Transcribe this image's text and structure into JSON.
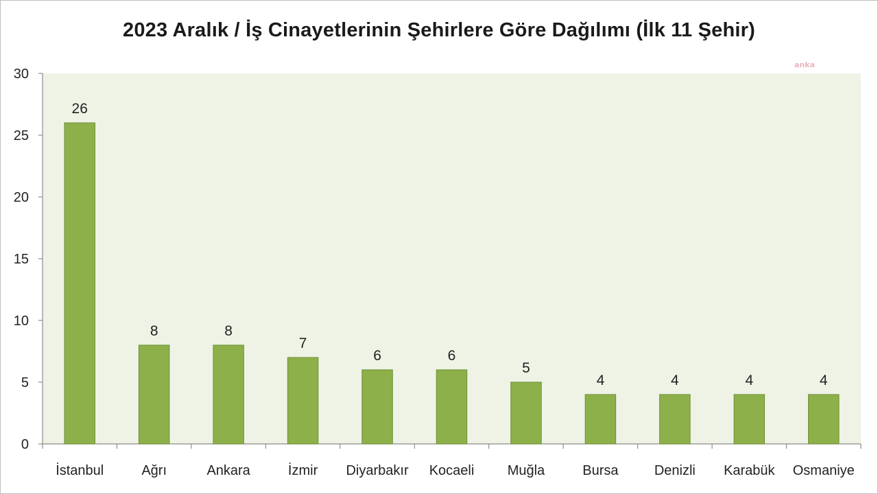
{
  "chart_data": {
    "type": "bar",
    "title": "2023 Aralık / İş Cinayetlerinin Şehirlere Göre Dağılımı (İlk 11 Şehir)",
    "xlabel": "",
    "ylabel": "",
    "categories": [
      "İstanbul",
      "Ağrı",
      "Ankara",
      "İzmir",
      "Diyarbakır",
      "Kocaeli",
      "Muğla",
      "Bursa",
      "Denizli",
      "Karabük",
      "Osmaniye"
    ],
    "values": [
      26,
      8,
      8,
      7,
      6,
      6,
      5,
      4,
      4,
      4,
      4
    ],
    "ylim": [
      0,
      30
    ],
    "yticks": [
      0,
      5,
      10,
      15,
      20,
      25,
      30
    ],
    "ytick_labels": [
      "0",
      "5",
      "10",
      "15",
      "20",
      "25",
      "30"
    ],
    "data_labels": [
      "26",
      "8",
      "8",
      "7",
      "6",
      "6",
      "5",
      "4",
      "4",
      "4",
      "4"
    ],
    "grid": false,
    "legend": "none",
    "bar_color": "#8db04a",
    "bar_edge_color": "#6f8f34",
    "plot_background": "#eef3e6"
  },
  "watermark": "anka"
}
